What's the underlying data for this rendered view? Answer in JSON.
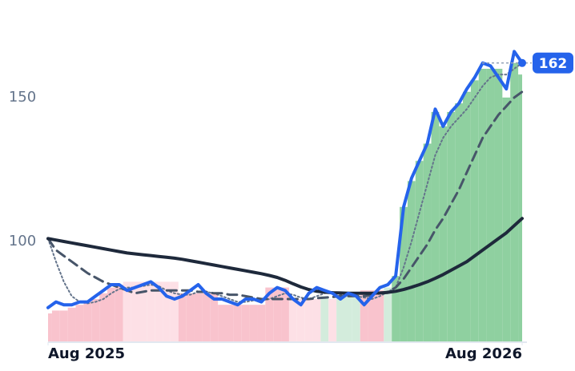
{
  "chart_data": {
    "type": "line",
    "xlim": [
      0,
      60
    ],
    "xticks": [
      {
        "value": 0,
        "label": "Aug 2025"
      },
      {
        "value": 60,
        "label": "Aug 2026"
      }
    ],
    "ylim": [
      65,
      170
    ],
    "yticks": [
      100,
      150
    ],
    "grid": false,
    "area": {
      "values": [
        75,
        76,
        76,
        77,
        78,
        79,
        80,
        82,
        84,
        85,
        86,
        86,
        86,
        86,
        86,
        86,
        86,
        82,
        82,
        82,
        82,
        82,
        78,
        78,
        78,
        78,
        78,
        78,
        84,
        84,
        84,
        80,
        80,
        80,
        80,
        81,
        80,
        81,
        81,
        81,
        83,
        83,
        83,
        84,
        88,
        112,
        121,
        128,
        134,
        145,
        140,
        145,
        148,
        152,
        156,
        160,
        160,
        160,
        150,
        162,
        158
      ],
      "colors": [
        "#f9c3cd",
        "#f9c3cd",
        "#f9c3cd",
        "#f9c3cd",
        "#f9c3cd",
        "#f9c3cd",
        "#f9c3cd",
        "#f9c3cd",
        "#f9c3cd",
        "#f9c3cd",
        "#fde0e6",
        "#fde0e6",
        "#fde0e6",
        "#fde0e6",
        "#fde0e6",
        "#fde0e6",
        "#fde0e6",
        "#f9c3cd",
        "#f9c3cd",
        "#f9c3cd",
        "#f9c3cd",
        "#f9c3cd",
        "#f9c3cd",
        "#f9c3cd",
        "#f9c3cd",
        "#f9c3cd",
        "#f9c3cd",
        "#f9c3cd",
        "#f9c3cd",
        "#f9c3cd",
        "#f9c3cd",
        "#fde0e6",
        "#fde0e6",
        "#fde0e6",
        "#fde0e6",
        "#d3ecdc",
        "#fde0e6",
        "#d3ecdc",
        "#d3ecdc",
        "#d3ecdc",
        "#f9c3cd",
        "#f9c3cd",
        "#f9c3cd",
        "#d3ecdc",
        "#8fd0a0",
        "#8fd0a0",
        "#8fd0a0",
        "#8fd0a0",
        "#8fd0a0",
        "#8fd0a0",
        "#8fd0a0",
        "#8fd0a0",
        "#8fd0a0",
        "#8fd0a0",
        "#8fd0a0",
        "#8fd0a0",
        "#8fd0a0",
        "#8fd0a0",
        "#8fd0a0",
        "#8fd0a0",
        "#8fd0a0"
      ]
    },
    "series": [
      {
        "color": "#64748b",
        "width": 2,
        "dash": "2 3",
        "values": [
          101,
          93,
          86,
          81,
          79,
          78.5,
          79,
          80,
          82,
          83.5,
          84,
          84,
          84.5,
          85,
          84.5,
          83,
          82,
          81.5,
          81.5,
          82.5,
          82.5,
          82,
          81,
          80,
          79,
          79,
          79.5,
          79.5,
          80,
          81,
          82,
          81.5,
          80.5,
          80,
          81,
          82,
          82.5,
          81.5,
          81,
          81,
          80.5,
          80,
          81,
          82.5,
          84,
          91,
          100,
          110,
          120,
          130,
          136,
          140,
          143,
          146,
          150,
          154,
          157,
          158,
          158,
          160,
          162
        ]
      },
      {
        "color": "#475569",
        "width": 3,
        "dash": "12 7",
        "values": [
          101,
          97,
          95,
          93,
          91,
          89,
          87.5,
          86,
          85,
          84,
          83,
          82,
          82.5,
          83,
          83,
          83,
          83,
          83,
          83,
          82.5,
          82.5,
          82,
          82,
          81.5,
          81.5,
          81,
          80.5,
          80,
          80,
          80,
          80,
          80,
          80,
          80,
          80.3,
          80.5,
          80.7,
          81,
          81,
          81,
          81,
          81.3,
          82,
          82.5,
          84,
          87,
          91,
          95,
          99,
          104,
          108,
          113,
          118,
          124,
          130,
          136,
          140,
          144,
          147,
          150,
          152
        ]
      },
      {
        "color": "#1e293b",
        "width": 4,
        "dash": "",
        "values": [
          101,
          100.5,
          100,
          99.5,
          99,
          98.5,
          98,
          97.5,
          97,
          96.5,
          96,
          95.7,
          95.4,
          95.1,
          94.8,
          94.5,
          94.2,
          93.8,
          93.3,
          92.8,
          92.3,
          91.8,
          91.3,
          90.8,
          90.3,
          89.8,
          89.3,
          88.8,
          88.2,
          87.5,
          86.5,
          85.3,
          84.2,
          83.3,
          82.7,
          82.4,
          82.2,
          82.1,
          82,
          82,
          82,
          82,
          82.1,
          82.3,
          82.7,
          83.3,
          84.1,
          85,
          86,
          87.2,
          88.5,
          90,
          91.5,
          93,
          95,
          97,
          99,
          101,
          103,
          105.5,
          108
        ]
      },
      {
        "color": "#2563eb",
        "width": 4,
        "dash": "",
        "values": [
          77,
          79,
          78,
          78,
          79,
          79,
          81,
          83,
          85,
          85,
          83,
          84,
          85,
          86,
          84,
          81,
          80,
          81,
          83,
          85,
          82,
          80,
          80,
          79,
          78,
          80,
          80,
          79,
          82,
          84,
          83,
          80,
          78,
          82,
          84,
          83,
          82,
          80,
          82,
          81,
          78,
          81,
          84,
          85,
          88,
          112,
          122,
          128,
          134,
          146,
          140,
          145,
          148,
          153,
          157,
          162,
          161,
          157,
          153,
          166,
          162
        ]
      }
    ]
  }
}
